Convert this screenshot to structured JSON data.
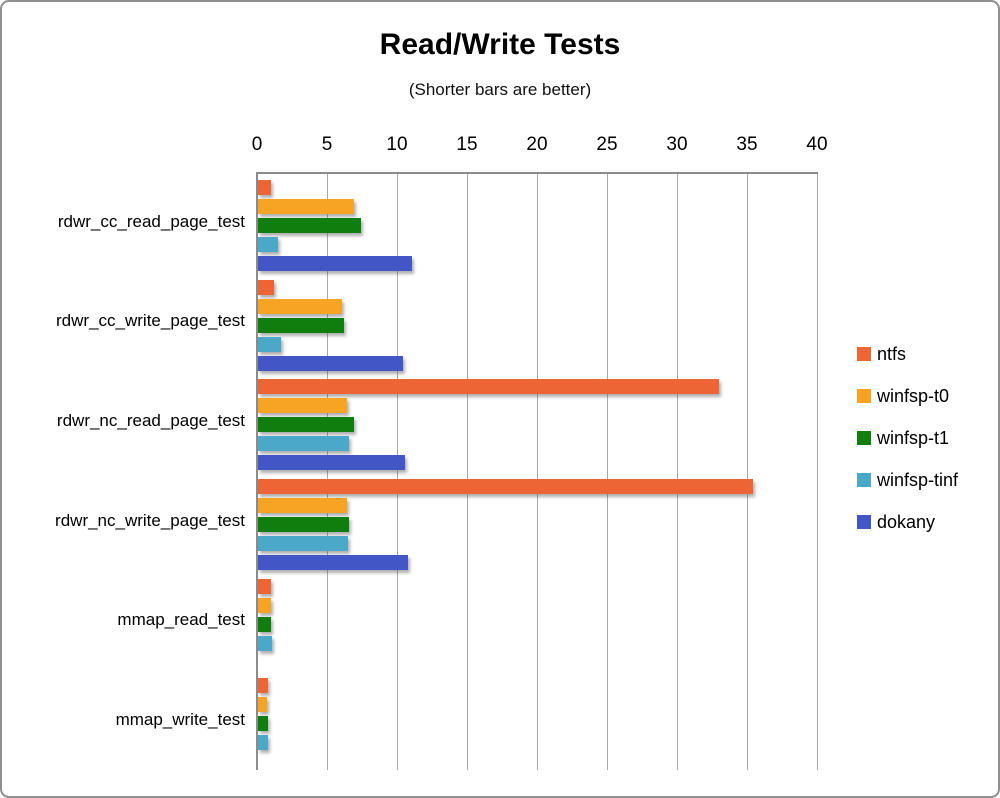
{
  "chart_data": {
    "type": "bar",
    "orientation": "horizontal",
    "title": "Read/Write Tests",
    "subtitle": "(Shorter bars are better)",
    "note": "Shorter bars are better",
    "categories": [
      "rdwr_cc_read_page_test",
      "rdwr_cc_write_page_test",
      "rdwr_nc_read_page_test",
      "rdwr_nc_write_page_test",
      "mmap_read_test",
      "mmap_write_test"
    ],
    "series": [
      {
        "name": "ntfs",
        "color": "#ED6435",
        "values": [
          1.0,
          1.2,
          33.0,
          35.4,
          1.0,
          0.8
        ]
      },
      {
        "name": "winfsp-t0",
        "color": "#F7A425",
        "values": [
          6.9,
          6.1,
          6.4,
          6.4,
          1.0,
          0.7
        ]
      },
      {
        "name": "winfsp-t1",
        "color": "#0F7E0F",
        "values": [
          7.4,
          6.2,
          6.9,
          6.6,
          1.0,
          0.8
        ]
      },
      {
        "name": "winfsp-tinf",
        "color": "#4BA8C9",
        "values": [
          1.5,
          1.7,
          6.6,
          6.5,
          1.1,
          0.8
        ]
      },
      {
        "name": "dokany",
        "color": "#4356C6",
        "values": [
          11.1,
          10.4,
          10.6,
          10.8,
          0,
          0
        ]
      }
    ],
    "xlim": [
      0,
      40
    ],
    "xticks": [
      0,
      5,
      10,
      15,
      20,
      25,
      30,
      35,
      40
    ],
    "grid": true,
    "legend_position": "right",
    "legend": [
      "ntfs",
      "winfsp-t0",
      "winfsp-t1",
      "winfsp-tinf",
      "dokany"
    ],
    "colors": {
      "ntfs": "#ED6435",
      "winfsp_t0": "#F7A425",
      "winfsp_t1": "#0F7E0F",
      "winfsp_tinf": "#4BA8C9",
      "dokany": "#4356C6",
      "gridline": "#A8A8A8",
      "axis_line": "#8C8C8C"
    }
  }
}
